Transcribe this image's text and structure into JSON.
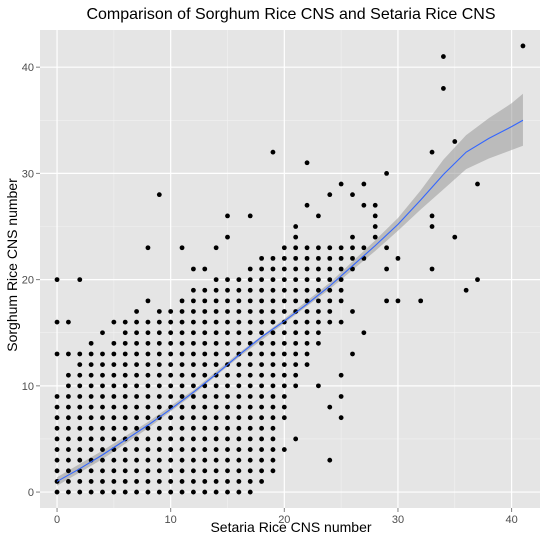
{
  "chart_data": {
    "type": "scatter",
    "title": "Comparison of Sorghum Rice CNS and Setaria Rice CNS",
    "xlabel": "Setaria Rice CNS number",
    "ylabel": "Sorghum Rice CNS number",
    "xlim": [
      -1.5,
      42.5
    ],
    "ylim": [
      -1.5,
      43.5
    ],
    "x_ticks": [
      0,
      10,
      20,
      30,
      40
    ],
    "y_ticks": [
      0,
      10,
      20,
      30,
      40
    ],
    "x_tick_labels": [
      "0",
      "10",
      "20",
      "30",
      "40"
    ],
    "y_tick_labels": [
      "0",
      "10",
      "20",
      "30",
      "40"
    ],
    "grid": true,
    "colors": {
      "panel": "#e5e5e5",
      "grid_major": "#ffffff",
      "grid_minor": "#f2f2f2",
      "points": "#000000",
      "smooth_line": "#3366ff",
      "confidence_band": "#999999"
    },
    "point_grid_rows": [
      {
        "y": 0,
        "x_from": 0,
        "x_to": 17
      },
      {
        "y": 1,
        "x_from": 0,
        "x_to": 18
      },
      {
        "y": 2,
        "x_from": 0,
        "x_to": 18
      },
      {
        "y": 3,
        "x_from": 0,
        "x_to": 18
      },
      {
        "y": 4,
        "x_from": 0,
        "x_to": 19
      },
      {
        "y": 5,
        "x_from": 0,
        "x_to": 19
      },
      {
        "y": 6,
        "x_from": 0,
        "x_to": 19
      },
      {
        "y": 7,
        "x_from": 0,
        "x_to": 20
      },
      {
        "y": 8,
        "x_from": 0,
        "x_to": 20
      },
      {
        "y": 9,
        "x_from": 0,
        "x_to": 20
      },
      {
        "y": 10,
        "x_from": 1,
        "x_to": 21
      },
      {
        "y": 11,
        "x_from": 1,
        "x_to": 21
      },
      {
        "y": 12,
        "x_from": 2,
        "x_to": 22
      },
      {
        "y": 13,
        "x_from": 3,
        "x_to": 22
      },
      {
        "y": 14,
        "x_from": 5,
        "x_to": 23
      },
      {
        "y": 15,
        "x_from": 6,
        "x_to": 23
      },
      {
        "y": 16,
        "x_from": 7,
        "x_to": 24
      },
      {
        "y": 17,
        "x_from": 9,
        "x_to": 24
      },
      {
        "y": 18,
        "x_from": 11,
        "x_to": 25
      },
      {
        "y": 19,
        "x_from": 12,
        "x_to": 25
      },
      {
        "y": 20,
        "x_from": 14,
        "x_to": 25
      },
      {
        "y": 21,
        "x_from": 17,
        "x_to": 26
      },
      {
        "y": 22,
        "x_from": 18,
        "x_to": 27
      },
      {
        "y": 23,
        "x_from": 20,
        "x_to": 27
      }
    ],
    "points": [
      [
        0,
        20
      ],
      [
        0,
        16
      ],
      [
        1,
        16
      ],
      [
        0,
        13
      ],
      [
        1,
        13
      ],
      [
        2,
        20
      ],
      [
        2,
        13
      ],
      [
        3,
        14
      ],
      [
        4,
        15
      ],
      [
        5,
        16
      ],
      [
        6,
        16
      ],
      [
        7,
        17
      ],
      [
        8,
        18
      ],
      [
        8,
        23
      ],
      [
        9,
        28
      ],
      [
        11,
        23
      ],
      [
        12,
        21
      ],
      [
        14,
        23
      ],
      [
        15,
        24
      ],
      [
        15,
        26
      ],
      [
        17,
        26
      ],
      [
        19,
        32
      ],
      [
        22,
        31
      ],
      [
        21,
        24
      ],
      [
        21,
        25
      ],
      [
        22,
        27
      ],
      [
        23,
        26
      ],
      [
        24,
        28
      ],
      [
        25,
        29
      ],
      [
        27,
        29
      ],
      [
        26,
        28
      ],
      [
        27,
        27
      ],
      [
        28,
        27
      ],
      [
        28,
        26
      ],
      [
        28,
        25
      ],
      [
        28,
        24
      ],
      [
        29,
        30
      ],
      [
        30,
        18
      ],
      [
        29,
        18
      ],
      [
        26,
        13
      ],
      [
        27,
        15
      ],
      [
        25,
        11
      ],
      [
        25,
        9
      ],
      [
        25,
        7
      ],
      [
        24,
        3
      ],
      [
        24,
        8
      ],
      [
        23,
        10
      ],
      [
        21,
        5
      ],
      [
        20,
        4
      ],
      [
        19,
        2
      ],
      [
        19,
        3
      ],
      [
        18,
        5
      ],
      [
        16,
        0
      ],
      [
        13,
        21
      ],
      [
        18,
        21
      ],
      [
        20,
        22
      ],
      [
        26,
        24
      ],
      [
        24,
        22
      ],
      [
        29,
        23
      ],
      [
        32,
        18
      ],
      [
        33,
        21
      ],
      [
        33,
        25
      ],
      [
        33,
        26
      ],
      [
        33,
        32
      ],
      [
        34,
        38
      ],
      [
        34,
        41
      ],
      [
        35,
        33
      ],
      [
        35,
        24
      ],
      [
        36,
        19
      ],
      [
        37,
        20
      ],
      [
        37,
        29
      ],
      [
        41,
        42
      ],
      [
        29,
        21
      ],
      [
        30,
        22
      ],
      [
        27,
        22
      ],
      [
        26,
        17
      ],
      [
        25,
        16
      ]
    ],
    "smooth_line": [
      [
        0,
        1.0
      ],
      [
        2,
        2.2
      ],
      [
        4,
        3.5
      ],
      [
        6,
        4.9
      ],
      [
        8,
        6.3
      ],
      [
        10,
        7.8
      ],
      [
        12,
        9.4
      ],
      [
        14,
        11.1
      ],
      [
        16,
        12.9
      ],
      [
        18,
        14.6
      ],
      [
        20,
        16.1
      ],
      [
        22,
        17.7
      ],
      [
        24,
        19.4
      ],
      [
        26,
        21.3
      ],
      [
        28,
        23.2
      ],
      [
        30,
        25.2
      ],
      [
        32,
        27.5
      ],
      [
        34,
        29.9
      ],
      [
        36,
        32.0
      ],
      [
        38,
        33.3
      ],
      [
        40,
        34.4
      ],
      [
        41,
        35.0
      ]
    ],
    "confidence_upper": [
      [
        0,
        1.4
      ],
      [
        4,
        3.9
      ],
      [
        8,
        6.6
      ],
      [
        12,
        9.6
      ],
      [
        16,
        13.1
      ],
      [
        20,
        16.3
      ],
      [
        24,
        19.7
      ],
      [
        28,
        23.7
      ],
      [
        30,
        25.8
      ],
      [
        32,
        28.4
      ],
      [
        34,
        31.3
      ],
      [
        36,
        33.6
      ],
      [
        38,
        35.2
      ],
      [
        40,
        36.6
      ],
      [
        41,
        37.5
      ]
    ],
    "confidence_lower": [
      [
        0,
        0.6
      ],
      [
        4,
        3.1
      ],
      [
        8,
        6.0
      ],
      [
        12,
        9.2
      ],
      [
        16,
        12.7
      ],
      [
        20,
        15.9
      ],
      [
        24,
        19.1
      ],
      [
        28,
        22.7
      ],
      [
        30,
        24.6
      ],
      [
        32,
        26.6
      ],
      [
        34,
        28.5
      ],
      [
        36,
        30.4
      ],
      [
        38,
        31.4
      ],
      [
        40,
        32.2
      ],
      [
        41,
        32.6
      ]
    ]
  }
}
